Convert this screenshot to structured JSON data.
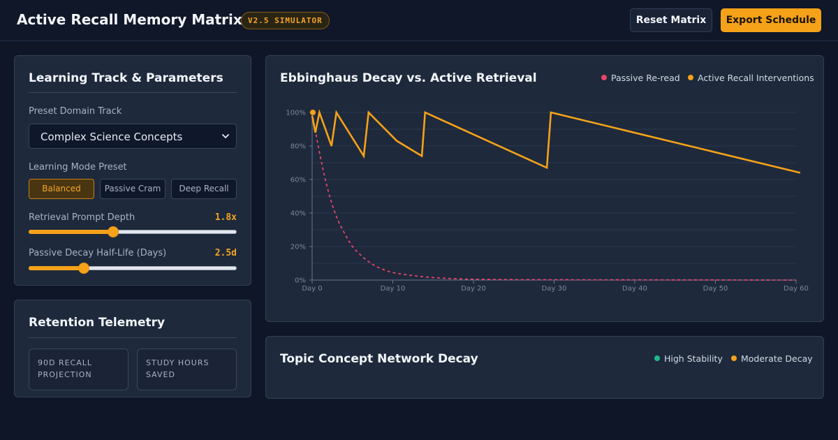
{
  "header": {
    "title": "Active Recall Memory Matrix",
    "version_badge": "V2.5 SIMULATOR",
    "reset_label": "Reset Matrix",
    "export_label": "Export Schedule"
  },
  "params": {
    "title": "Learning Track & Parameters",
    "domain_label": "Preset Domain Track",
    "domain_value": "Complex Science Concepts",
    "mode_label": "Learning Mode Preset",
    "modes": [
      {
        "label": "Balanced",
        "active": true
      },
      {
        "label": "Passive Cram",
        "active": false
      },
      {
        "label": "Deep Recall",
        "active": false
      }
    ],
    "retrieval": {
      "label": "Retrieval Prompt Depth",
      "value_text": "1.8x",
      "fraction": 0.405
    },
    "decay": {
      "label": "Passive Decay Half-Life (Days)",
      "value_text": "2.5d",
      "fraction": 0.265
    }
  },
  "telemetry": {
    "title": "Retention Telemetry",
    "cards": [
      {
        "label": "90D RECALL PROJECTION"
      },
      {
        "label": "STUDY HOURS SAVED"
      }
    ]
  },
  "chart": {
    "title": "Ebbinghaus Decay vs. Active Retrieval",
    "legend": [
      {
        "label": "Passive Re-read",
        "color": "#e8446a"
      },
      {
        "label": "Active Recall Interventions",
        "color": "#f5a219"
      }
    ]
  },
  "chart_data": {
    "type": "line",
    "title": "Ebbinghaus Decay vs. Active Retrieval",
    "xlabel": "",
    "ylabel": "",
    "xlim": [
      0,
      60
    ],
    "ylim": [
      0,
      100
    ],
    "x_ticks": [
      "Day 0",
      "Day 10",
      "Day 20",
      "Day 30",
      "Day 40",
      "Day 50",
      "Day 60"
    ],
    "y_ticks": [
      "0%",
      "20%",
      "40%",
      "60%",
      "80%",
      "100%"
    ],
    "grid": true,
    "legend_position": "top-right",
    "series": [
      {
        "name": "Passive Re-read",
        "color": "#e8446a",
        "style": "dashed",
        "points": [
          [
            0,
            100
          ],
          [
            1,
            74
          ],
          [
            2,
            53
          ],
          [
            3,
            38
          ],
          [
            4,
            28
          ],
          [
            5,
            20
          ],
          [
            6,
            15
          ],
          [
            7,
            11
          ],
          [
            8,
            8
          ],
          [
            9,
            6
          ],
          [
            10,
            4.5
          ],
          [
            12,
            3
          ],
          [
            15,
            1.5
          ],
          [
            20,
            0.5
          ],
          [
            30,
            0.2
          ],
          [
            45,
            0.1
          ],
          [
            60,
            0
          ]
        ]
      },
      {
        "name": "Active Recall Interventions",
        "color": "#f5a219",
        "style": "solid",
        "points": [
          [
            0,
            98
          ],
          [
            0.4,
            88
          ],
          [
            0.9,
            100
          ],
          [
            2.4,
            80
          ],
          [
            3,
            100
          ],
          [
            6.4,
            74
          ],
          [
            7,
            100
          ],
          [
            10.5,
            83
          ],
          [
            13.6,
            74
          ],
          [
            14,
            100
          ],
          [
            29.1,
            67
          ],
          [
            29.6,
            100
          ],
          [
            60.5,
            64
          ]
        ]
      }
    ]
  },
  "network": {
    "title": "Topic Concept Network Decay",
    "legend": [
      {
        "label": "High Stability",
        "color": "#1fba8a"
      },
      {
        "label": "Moderate Decay",
        "color": "#f5a219"
      }
    ]
  }
}
